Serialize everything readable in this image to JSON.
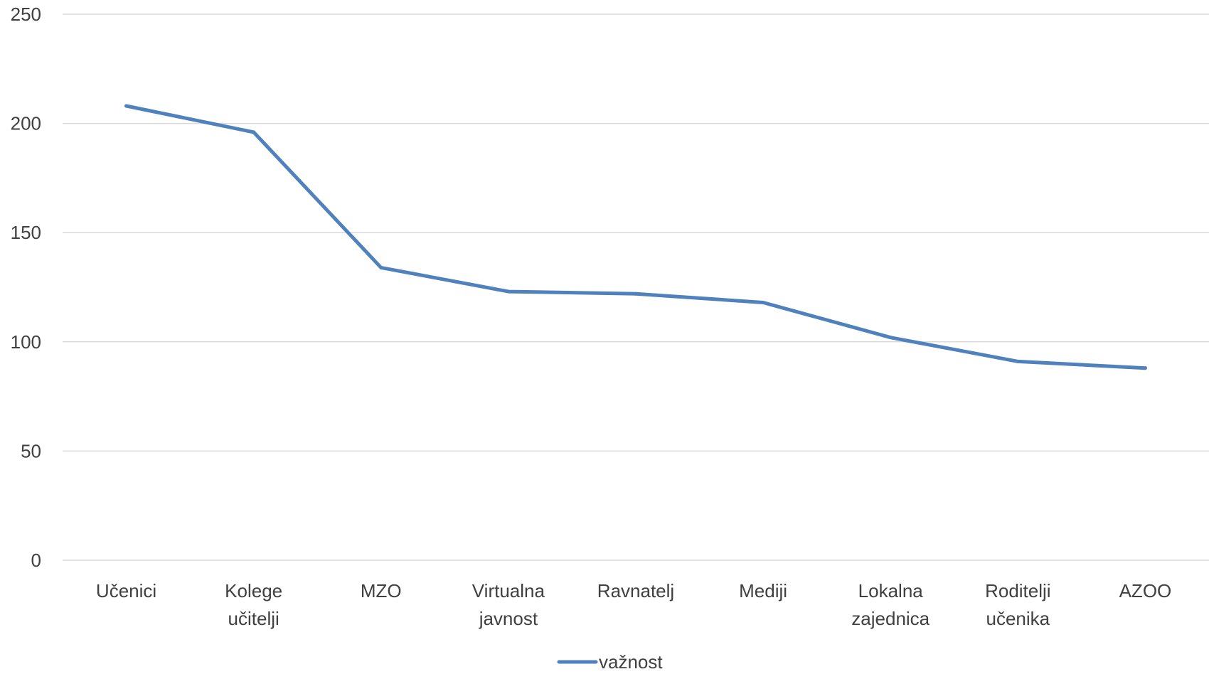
{
  "chart_data": {
    "type": "line",
    "categories": [
      [
        "Učenici"
      ],
      [
        "Kolege",
        "učitelji"
      ],
      [
        "MZO"
      ],
      [
        "Virtualna",
        "javnost"
      ],
      [
        "Ravnatelj"
      ],
      [
        "Mediji"
      ],
      [
        "Lokalna",
        "zajednica"
      ],
      [
        "Roditelji",
        "učenika"
      ],
      [
        "AZOO"
      ]
    ],
    "series": [
      {
        "name": "važnost",
        "color": "#4f81bd",
        "values": [
          208,
          196,
          134,
          123,
          122,
          118,
          102,
          91,
          88
        ]
      }
    ],
    "ylim": [
      0,
      250
    ],
    "yticks": [
      0,
      50,
      100,
      150,
      200,
      250
    ],
    "grid": true,
    "legend_position": "bottom"
  }
}
